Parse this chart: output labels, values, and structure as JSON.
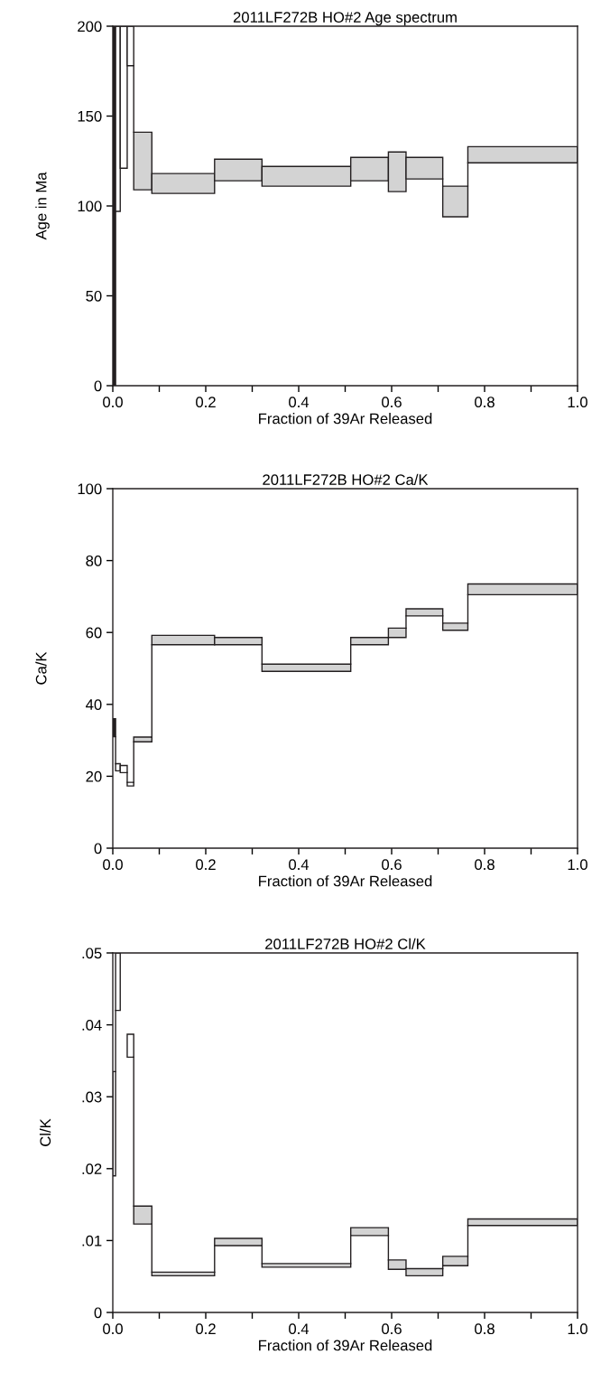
{
  "chart_data": [
    {
      "type": "histogram",
      "title": "2011LF272B HO#2 Age spectrum",
      "xlabel": "Fraction of 39Ar Released",
      "ylabel": "Age in Ma",
      "bins": [
        0,
        0.006,
        0.016,
        0.031,
        0.045,
        0.084,
        0.219,
        0.321,
        0.512,
        0.593,
        0.631,
        0.71,
        0.764,
        1.0
      ],
      "base": [
        0,
        97,
        121,
        178,
        109,
        107,
        114,
        111,
        114,
        108,
        115,
        94,
        124
      ],
      "values": [
        200,
        103,
        79,
        22,
        32,
        11,
        12,
        11,
        13,
        22,
        12,
        17,
        9
      ],
      "colors": [
        "#231f20",
        "#ffffff",
        "#ffffff",
        "#ffffff",
        "#d3d3d3",
        "#d3d3d3",
        "#d3d3d3",
        "#d3d3d3",
        "#d3d3d3",
        "#d3d3d3",
        "#d3d3d3",
        "#d3d3d3",
        "#d3d3d3"
      ],
      "xlim": [
        0,
        1.0
      ],
      "ylim": [
        0,
        200
      ],
      "xticks": [
        {
          "value": 0,
          "label": "0.0"
        },
        {
          "value": 0.1,
          "label": null
        },
        {
          "value": 0.2,
          "label": "0.2"
        },
        {
          "value": 0.3,
          "label": null
        },
        {
          "value": 0.4,
          "label": "0.4"
        },
        {
          "value": 0.5,
          "label": null
        },
        {
          "value": 0.6,
          "label": "0.6"
        },
        {
          "value": 0.7,
          "label": null
        },
        {
          "value": 0.8,
          "label": "0.8"
        },
        {
          "value": 0.9,
          "label": null
        },
        {
          "value": 1.0,
          "label": "1.0"
        }
      ],
      "yticks": [
        0,
        50,
        100,
        150,
        200
      ],
      "grid": false,
      "legend": false
    },
    {
      "type": "histogram",
      "title": "2011LF272B HO#2 Ca/K",
      "xlabel": "Fraction of 39Ar Released",
      "ylabel": "Ca/K",
      "bins": [
        0,
        0.006,
        0.016,
        0.031,
        0.045,
        0.084,
        0.219,
        0.321,
        0.512,
        0.593,
        0.631,
        0.71,
        0.764,
        1.0
      ],
      "base": [
        31,
        21.5,
        21,
        17.3,
        29.6,
        56.6,
        56.6,
        49.2,
        56.6,
        58.6,
        64.6,
        60.6,
        70.5
      ],
      "values": [
        5,
        2,
        2,
        1,
        1.3,
        2.6,
        2,
        2,
        2,
        2.6,
        2,
        2,
        3
      ],
      "colors": [
        "#231f20",
        "#ffffff",
        "#ffffff",
        "#ffffff",
        "#d3d3d3",
        "#d3d3d3",
        "#d3d3d3",
        "#d3d3d3",
        "#d3d3d3",
        "#d3d3d3",
        "#d3d3d3",
        "#d3d3d3",
        "#d3d3d3"
      ],
      "xlim": [
        0,
        1.0
      ],
      "ylim": [
        0,
        100
      ],
      "xticks": [
        {
          "value": 0,
          "label": "0.0"
        },
        {
          "value": 0.1,
          "label": null
        },
        {
          "value": 0.2,
          "label": "0.2"
        },
        {
          "value": 0.3,
          "label": null
        },
        {
          "value": 0.4,
          "label": "0.4"
        },
        {
          "value": 0.5,
          "label": null
        },
        {
          "value": 0.6,
          "label": "0.6"
        },
        {
          "value": 0.7,
          "label": null
        },
        {
          "value": 0.8,
          "label": "0.8"
        },
        {
          "value": 0.9,
          "label": null
        },
        {
          "value": 1.0,
          "label": "1.0"
        }
      ],
      "yticks": [
        0,
        20,
        40,
        60,
        80,
        100
      ],
      "grid": false,
      "legend": false
    },
    {
      "type": "histogram",
      "title": "2011LF272B HO#2 Cl/K",
      "xlabel": "Fraction of 39Ar Released",
      "ylabel": "Cl/K",
      "bins": [
        0,
        0.006,
        0.016,
        0.031,
        0.045,
        0.084,
        0.219,
        0.321,
        0.512,
        0.593,
        0.631,
        0.71,
        0.764,
        1.0
      ],
      "base": [
        0.019,
        0.042,
        null,
        0.0355,
        0.0123,
        0.0051,
        0.0093,
        0.0063,
        0.0107,
        0.006,
        0.0051,
        0.0065,
        0.0121
      ],
      "values": [
        0.0145,
        0.008,
        null,
        0.0032,
        0.0025,
        0.0005,
        0.001,
        0.0005,
        0.0011,
        0.0013,
        0.001,
        0.0013,
        0.0009
      ],
      "colors": [
        "#ffffff",
        "#ffffff",
        "#ffffff",
        "#ffffff",
        "#d3d3d3",
        "#d3d3d3",
        "#d3d3d3",
        "#d3d3d3",
        "#d3d3d3",
        "#d3d3d3",
        "#d3d3d3",
        "#d3d3d3",
        "#d3d3d3"
      ],
      "xlim": [
        0,
        1.0
      ],
      "ylim": [
        0,
        0.05
      ],
      "xticks": [
        {
          "value": 0,
          "label": "0.0"
        },
        {
          "value": 0.1,
          "label": null
        },
        {
          "value": 0.2,
          "label": "0.2"
        },
        {
          "value": 0.3,
          "label": null
        },
        {
          "value": 0.4,
          "label": "0.4"
        },
        {
          "value": 0.5,
          "label": null
        },
        {
          "value": 0.6,
          "label": "0.6"
        },
        {
          "value": 0.7,
          "label": null
        },
        {
          "value": 0.8,
          "label": "0.8"
        },
        {
          "value": 0.9,
          "label": null
        },
        {
          "value": 1.0,
          "label": "1.0"
        }
      ],
      "yticks": [
        0,
        {
          "value": 0.01,
          "label": ".01"
        },
        {
          "value": 0.02,
          "label": ".02"
        },
        {
          "value": 0.03,
          "label": ".03"
        },
        {
          "value": 0.04,
          "label": ".04"
        },
        {
          "value": 0.05,
          "label": ".05"
        }
      ],
      "grid": false,
      "legend": false
    }
  ]
}
